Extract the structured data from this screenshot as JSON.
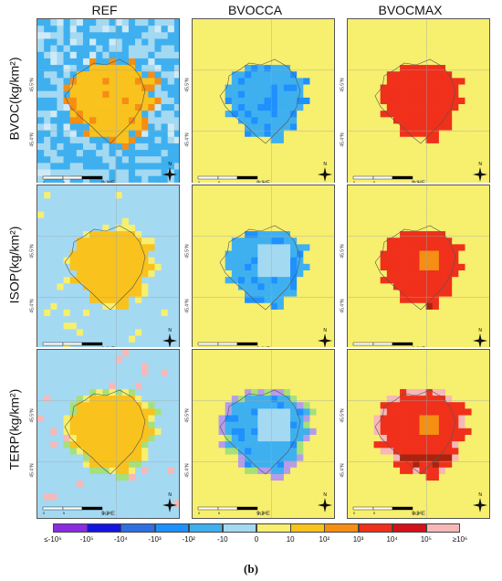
{
  "columns": [
    "REF",
    "BVOCCA",
    "BVOCMAX"
  ],
  "rows": [
    "BVOC(kg/km²)",
    "ISOP(kg/km²)",
    "TERP(kg/km²)"
  ],
  "axis_labels": {
    "lat_upper": "45.5°N",
    "lat_lower": "45.4°N",
    "lon": "9.2°E"
  },
  "scalebar_labels": [
    "0",
    "5",
    "10 km"
  ],
  "north_label": "N",
  "legend": {
    "ticks": [
      "≤-10⁶",
      "-10⁵",
      "-10⁴",
      "-10³",
      "-10²",
      "-10",
      "0",
      "10",
      "10²",
      "10³",
      "10⁴",
      "10⁵",
      "≥10⁶"
    ],
    "colors": [
      "#8a2be2",
      "#1414e0",
      "#2f6fe0",
      "#1e90ff",
      "#3fb0ef",
      "#a4d9f2",
      "#f7ef6e",
      "#f9c21c",
      "#f58e12",
      "#f0301a",
      "#d6101a",
      "#f7b8b8"
    ]
  },
  "caption": "(b)"
}
